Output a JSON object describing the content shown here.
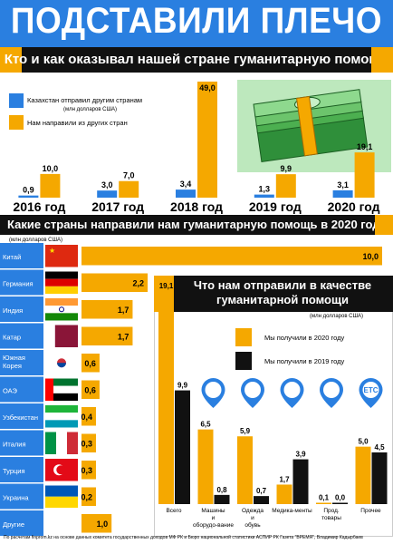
{
  "header": {
    "title": "ПОДСТАВИЛИ ПЛЕЧО",
    "subtitle": "Кто и как оказывал нашей стране гуманитарную помощь"
  },
  "colors": {
    "blue": "#2a7fe0",
    "orange": "#f5a800",
    "black": "#111111"
  },
  "chart1": {
    "unit_note": "(млн долларов США)",
    "legend": [
      {
        "label": "Казахстан отправил другим странам",
        "color": "#2a7fe0"
      },
      {
        "label": "Нам направили из других стран",
        "color": "#f5a800"
      }
    ]
  },
  "chart2_section": {
    "title": "Какие страны направили нам гуманитарную помощь в 2020 году",
    "unit_note": "(млн долларов США)"
  },
  "chart3_section": {
    "title_line1": "Что нам отправили в качестве",
    "title_line2": "гуманитарной помощи",
    "unit_note": "(млн долларов США)",
    "legend": [
      {
        "label": "Мы получили в 2020 году",
        "color": "#f5a800"
      },
      {
        "label": "Мы получили в 2019 году",
        "color": "#111111"
      }
    ],
    "icon_labels": {
      "etc": "ETC"
    }
  },
  "footer": "По расчетам finprom.kz на основе данных комитета государственных доходов МФ РК и Бюро национальной статистики АСПИР РК   Газета \"ВРЕМЯ\", Владимир Кадырбаев",
  "chart_data": [
    {
      "type": "bar",
      "categories": [
        "2016 год",
        "2017 год",
        "2018 год",
        "2019 год",
        "2020 год"
      ],
      "series": [
        {
          "name": "Казахстан отправил другим странам",
          "values": [
            0.9,
            3.0,
            3.4,
            1.3,
            3.1
          ],
          "labels": [
            "0,9",
            "3,0",
            "3,4",
            "1,3",
            "3,1"
          ]
        },
        {
          "name": "Нам направили из других стран",
          "values": [
            10.0,
            7.0,
            49.0,
            9.9,
            19.1
          ],
          "labels": [
            "10,0",
            "7,0",
            "49,0",
            "9,9",
            "19,1"
          ]
        }
      ],
      "ylim": [
        0,
        49
      ]
    },
    {
      "type": "bar",
      "orientation": "horizontal",
      "categories": [
        "Китай",
        "Германия",
        "Индия",
        "Катар",
        "Южная Корея",
        "ОАЭ",
        "Узбекистан",
        "Италия",
        "Турция",
        "Украина",
        "Другие"
      ],
      "values": [
        10.0,
        2.2,
        1.7,
        1.7,
        0.6,
        0.6,
        0.4,
        0.3,
        0.3,
        0.2,
        1.0
      ],
      "labels": [
        "10,0",
        "2,2",
        "1,7",
        "1,7",
        "0,6",
        "0,6",
        "0,4",
        "0,3",
        "0,3",
        "0,2",
        "1,0"
      ],
      "xlim": [
        0,
        10
      ]
    },
    {
      "type": "bar",
      "categories": [
        "Всего",
        "Машины и оборудо-вание",
        "Одежда и обувь",
        "Медика-менты",
        "Прод. товары",
        "Прочее"
      ],
      "series": [
        {
          "name": "Мы получили в 2020 году",
          "values": [
            19.1,
            6.5,
            5.9,
            1.7,
            0.1,
            5.0
          ],
          "labels": [
            "19,1",
            "6,5",
            "5,9",
            "1,7",
            "0,1",
            "5,0"
          ]
        },
        {
          "name": "Мы получили в 2019 году",
          "values": [
            9.9,
            0.8,
            0.7,
            3.9,
            0.0,
            4.5
          ],
          "labels": [
            "9,9",
            "0,8",
            "0,7",
            "3,9",
            "0,0",
            "4,5"
          ]
        }
      ],
      "ylim": [
        0,
        19.1
      ]
    }
  ]
}
